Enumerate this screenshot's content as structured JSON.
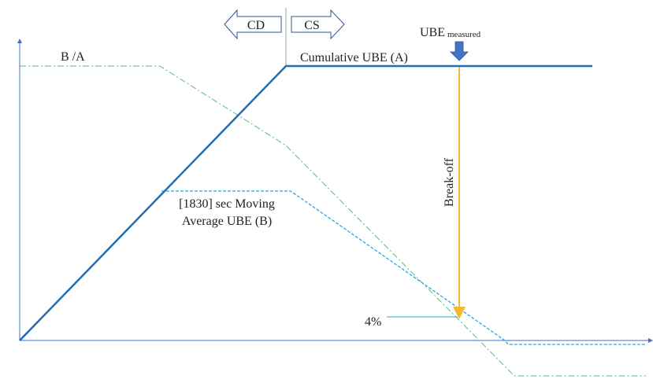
{
  "labels": {
    "ratio": "B /A",
    "cd": "CD",
    "cs": "CS",
    "ube": "UBE",
    "ube_sub": "measured",
    "cumulative": "Cumulative UBE (A)",
    "moving_line1": "[1830] sec Moving",
    "moving_line2": "Average UBE (B)",
    "breakoff": "Break-off",
    "percent": "4%"
  },
  "colors": {
    "axis": "#4472c4",
    "cumulative": "#1f6fb5",
    "moving": "#2aa8e0",
    "ratio": "#5cba7d",
    "breakoff": "#f5b82e",
    "marker": "#4472c4",
    "arrow_outline": "#2f5597",
    "divider": "#9aa5b8"
  },
  "icons": {
    "marker": "down-arrow-icon",
    "cd": "left-arrow-icon",
    "cs": "right-arrow-icon"
  }
}
